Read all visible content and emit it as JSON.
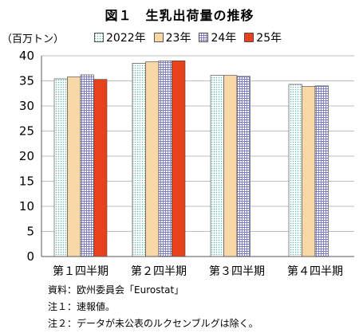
{
  "figure": {
    "title": "図１　生乳出荷量の推移",
    "unit": "（百万トン）",
    "notes": [
      "資料：欧州委員会「Eurostat」",
      "注１：速報値。",
      "注２：データが未公表のルクセンブルグは除く。"
    ]
  },
  "chart_data": {
    "type": "bar",
    "title": "図１　生乳出荷量の推移",
    "ylabel": "（百万トン）",
    "xlabel": "",
    "categories": [
      "第１四半期",
      "第２四半期",
      "第３四半期",
      "第４四半期"
    ],
    "ylim": [
      0,
      40
    ],
    "yticks": [
      0,
      5,
      10,
      15,
      20,
      25,
      30,
      35,
      40
    ],
    "grid": true,
    "legend_position": "top",
    "series": [
      {
        "name": "2022年",
        "values": [
          35.4,
          38.5,
          36.1,
          34.3
        ],
        "color": "#dff1ef",
        "pattern": "dots"
      },
      {
        "name": "23年",
        "values": [
          35.8,
          38.8,
          36.1,
          33.9
        ],
        "color": "#f7d8a6",
        "pattern": "solid"
      },
      {
        "name": "24年",
        "values": [
          36.2,
          39.0,
          35.9,
          34.0
        ],
        "color": "#d9d9f2",
        "pattern": "grid"
      },
      {
        "name": "25年",
        "values": [
          35.3,
          39.0,
          null,
          null
        ],
        "color": "#e8411d",
        "pattern": "solid"
      }
    ]
  }
}
